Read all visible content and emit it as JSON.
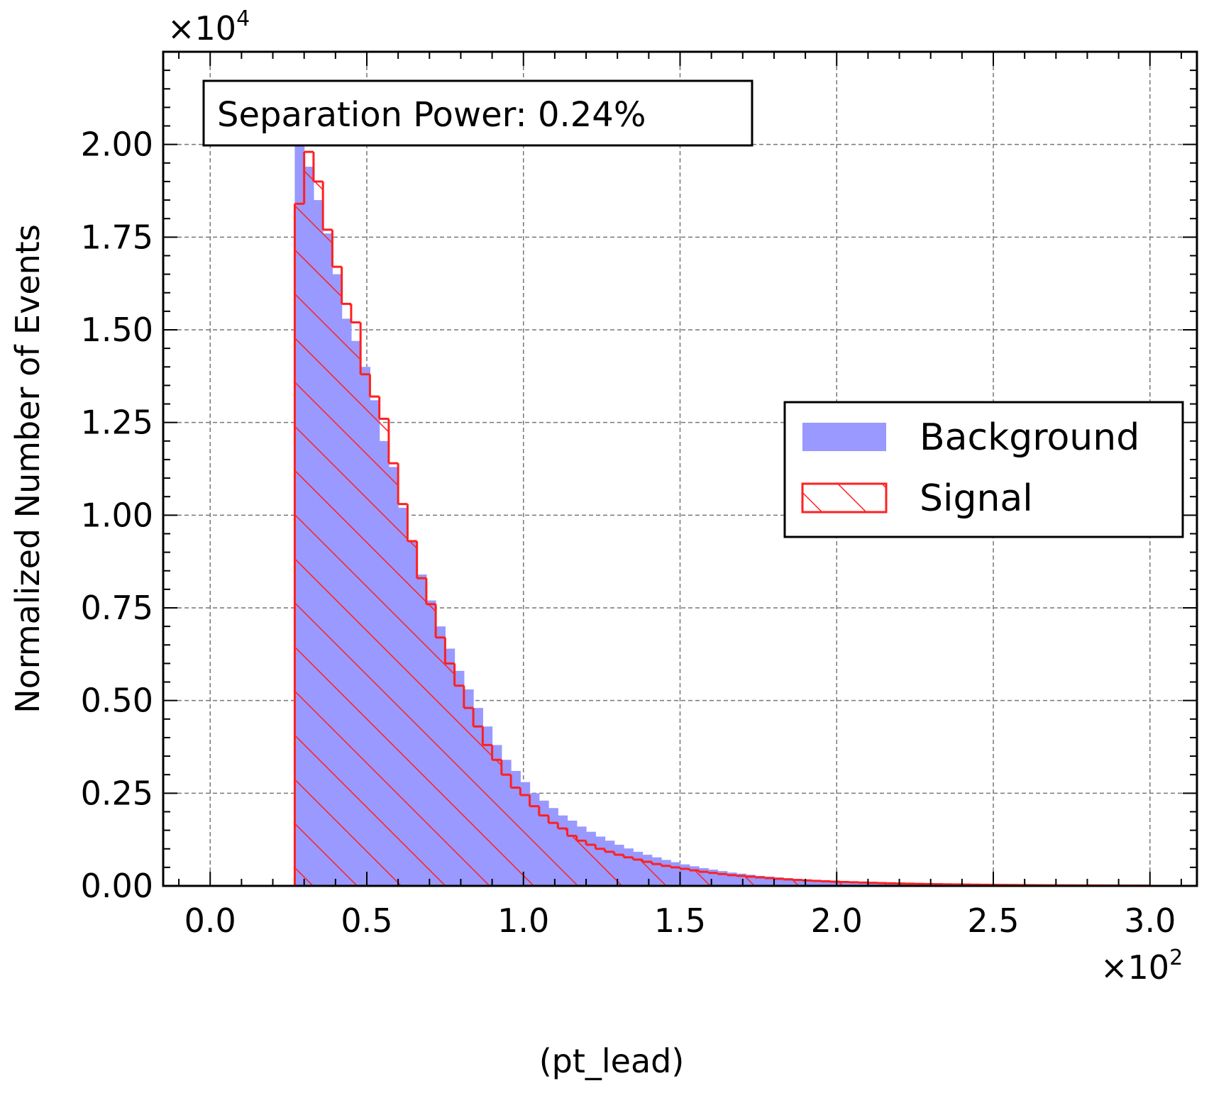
{
  "chart_data": {
    "type": "histogram",
    "xlabel": "(pt_lead)",
    "ylabel": "Normalized Number of Events",
    "x_multiplier": {
      "base": "×10",
      "exp": "2"
    },
    "y_multiplier": {
      "base": "×10",
      "exp": "4"
    },
    "xlim": [
      -0.15,
      3.15
    ],
    "ylim": [
      0,
      2.25
    ],
    "x_ticks": [
      {
        "value": 0.0,
        "label": "0.0"
      },
      {
        "value": 0.5,
        "label": "0.5"
      },
      {
        "value": 1.0,
        "label": "1.0"
      },
      {
        "value": 1.5,
        "label": "1.5"
      },
      {
        "value": 2.0,
        "label": "2.0"
      },
      {
        "value": 2.5,
        "label": "2.5"
      },
      {
        "value": 3.0,
        "label": "3.0"
      }
    ],
    "y_ticks": [
      {
        "value": 0.0,
        "label": "0.00"
      },
      {
        "value": 0.25,
        "label": "0.25"
      },
      {
        "value": 0.5,
        "label": "0.50"
      },
      {
        "value": 0.75,
        "label": "0.75"
      },
      {
        "value": 1.0,
        "label": "1.00"
      },
      {
        "value": 1.25,
        "label": "1.25"
      },
      {
        "value": 1.5,
        "label": "1.50"
      },
      {
        "value": 1.75,
        "label": "1.75"
      },
      {
        "value": 2.0,
        "label": "2.00"
      }
    ],
    "grid": true,
    "legend_position": "center-right",
    "annotation": "Separation Power: 0.24%",
    "bins": {
      "start": 0.27,
      "width": 0.03,
      "count": 91
    },
    "series": [
      {
        "name": "Background",
        "style": "filled",
        "color": "#9999ff",
        "values": [
          2.05,
          1.94,
          1.85,
          1.76,
          1.65,
          1.53,
          1.47,
          1.4,
          1.31,
          1.2,
          1.13,
          1.02,
          0.93,
          0.84,
          0.77,
          0.7,
          0.64,
          0.58,
          0.53,
          0.48,
          0.43,
          0.38,
          0.34,
          0.31,
          0.28,
          0.25,
          0.23,
          0.21,
          0.19,
          0.176,
          0.16,
          0.146,
          0.133,
          0.122,
          0.111,
          0.101,
          0.092,
          0.084,
          0.077,
          0.07,
          0.064,
          0.058,
          0.053,
          0.048,
          0.044,
          0.04,
          0.036,
          0.033,
          0.03,
          0.027,
          0.025,
          0.023,
          0.021,
          0.019,
          0.017,
          0.015,
          0.014,
          0.013,
          0.012,
          0.011,
          0.01,
          0.009,
          0.008,
          0.0075,
          0.007,
          0.0065,
          0.006,
          0.0055,
          0.005,
          0.0046,
          0.0042,
          0.0038,
          0.0035,
          0.0032,
          0.0029,
          0.0027,
          0.0025,
          0.0023,
          0.0021,
          0.0019,
          0.0018,
          0.0017,
          0.0016,
          0.0015,
          0.0014,
          0.0013,
          0.0012,
          0.0011,
          0.001,
          0.0009,
          0.0008
        ]
      },
      {
        "name": "Signal",
        "style": "hatched",
        "color": "#ff2020",
        "values": [
          1.84,
          1.98,
          1.9,
          1.77,
          1.67,
          1.57,
          1.52,
          1.38,
          1.32,
          1.26,
          1.14,
          1.03,
          0.93,
          0.83,
          0.76,
          0.67,
          0.6,
          0.54,
          0.48,
          0.43,
          0.38,
          0.34,
          0.3,
          0.265,
          0.245,
          0.215,
          0.19,
          0.17,
          0.155,
          0.135,
          0.122,
          0.111,
          0.1,
          0.092,
          0.084,
          0.077,
          0.071,
          0.065,
          0.059,
          0.054,
          0.05,
          0.046,
          0.042,
          0.038,
          0.035,
          0.032,
          0.029,
          0.027,
          0.025,
          0.023,
          0.021,
          0.019,
          0.0175,
          0.016,
          0.0148,
          0.0136,
          0.0125,
          0.0115,
          0.0106,
          0.0098,
          0.009,
          0.0083,
          0.0076,
          0.007,
          0.0064,
          0.0059,
          0.0054,
          0.005,
          0.0046,
          0.0042,
          0.0039,
          0.0036,
          0.0033,
          0.003,
          0.0028,
          0.0026,
          0.0024,
          0.0022,
          0.002,
          0.0018,
          0.0017,
          0.0016,
          0.0015,
          0.0014,
          0.0013,
          0.0012,
          0.0011,
          0.001,
          0.0009,
          0.0008,
          0.0007
        ]
      }
    ]
  }
}
